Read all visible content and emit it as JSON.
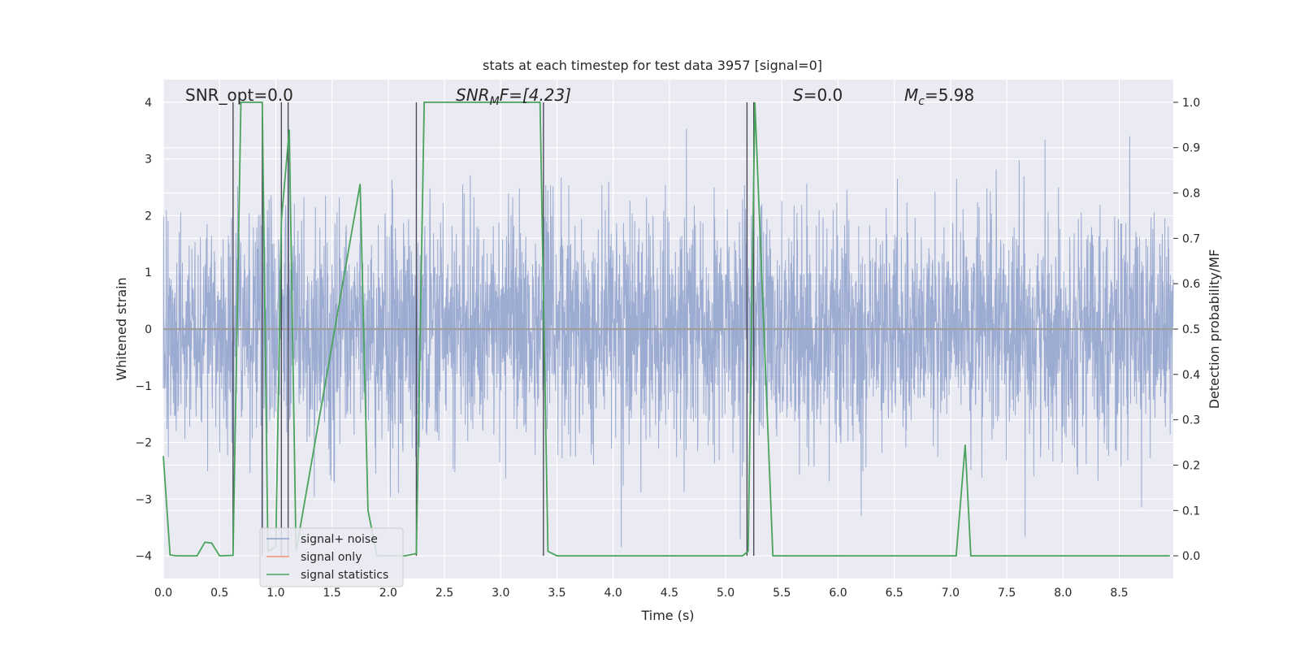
{
  "chart_data": {
    "type": "line",
    "title": "stats at each timestep for test data 3957 [signal=0]",
    "xlabel": "Time (s)",
    "ylabel_left": "Whitened strain",
    "ylabel_right": "Detection probability/MF",
    "xlim": [
      0.0,
      8.98
    ],
    "ylim_left": [
      -4.4,
      4.4
    ],
    "ylim_right": [
      -0.05,
      1.05
    ],
    "x_ticks": [
      "0.0",
      "0.5",
      "1.0",
      "1.5",
      "2.0",
      "2.5",
      "3.0",
      "3.5",
      "4.0",
      "4.5",
      "5.0",
      "5.5",
      "6.0",
      "6.5",
      "7.0",
      "7.5",
      "8.0",
      "8.5"
    ],
    "y_ticks_left": [
      "4",
      "3",
      "2",
      "1",
      "0",
      "−1",
      "−2",
      "−3",
      "−4"
    ],
    "y_ticks_right": [
      "1.0",
      "0.9",
      "0.8",
      "0.7",
      "0.6",
      "0.5",
      "0.4",
      "0.3",
      "0.2",
      "0.1",
      "0.0"
    ],
    "annotations": {
      "snr_opt": "SNR_opt=0.0",
      "snr_mf_sym": "SNR",
      "snr_mf_sub": "M",
      "snr_mf_rest": "F=[4.23]",
      "s_sym": "S",
      "s_rest": "=0.0",
      "mc_sym": "M",
      "mc_sub": "c",
      "mc_rest": "=5.98"
    },
    "legend": [
      {
        "label": "signal+ noise",
        "color": "#8da0cb"
      },
      {
        "label": "signal only",
        "color": "#e8956f"
      },
      {
        "label": "signal statistics",
        "color": "#4aa35c"
      }
    ],
    "noise_series": {
      "name": "signal+ noise",
      "amplitude_sigma": 1.0,
      "x_range": [
        0.0,
        8.98
      ],
      "color": "#8da0cb"
    },
    "signal_series": {
      "name": "signal only",
      "value": 0.0,
      "color": "#e8956f"
    },
    "stat_series": {
      "name": "signal statistics",
      "color": "#4aa35c",
      "x": [
        0.0,
        0.06,
        0.12,
        0.3,
        0.37,
        0.43,
        0.5,
        0.62,
        0.69,
        0.72,
        0.88,
        0.93,
        1.0,
        1.05,
        1.12,
        1.18,
        1.75,
        1.82,
        1.9,
        2.15,
        2.25,
        2.32,
        3.35,
        3.42,
        3.5,
        3.8,
        5.15,
        5.2,
        5.26,
        5.34,
        5.42,
        7.05,
        7.13,
        7.18,
        7.25,
        8.95
      ],
      "y": [
        0.22,
        0.002,
        0.0,
        0.0,
        0.03,
        0.028,
        0.0,
        0.001,
        1.0,
        1.0,
        1.0,
        0.01,
        0.02,
        0.74,
        0.94,
        0.01,
        0.82,
        0.1,
        0.0,
        0.0,
        0.005,
        1.0,
        1.0,
        0.01,
        0.0,
        0.0,
        0.0,
        0.01,
        1.0,
        0.5,
        0.0,
        0.0,
        0.245,
        0.0,
        0.0,
        0.0
      ]
    },
    "vertical_markers": [
      0.62,
      0.88,
      1.05,
      1.11,
      2.25,
      3.38,
      5.19,
      5.25
    ]
  }
}
